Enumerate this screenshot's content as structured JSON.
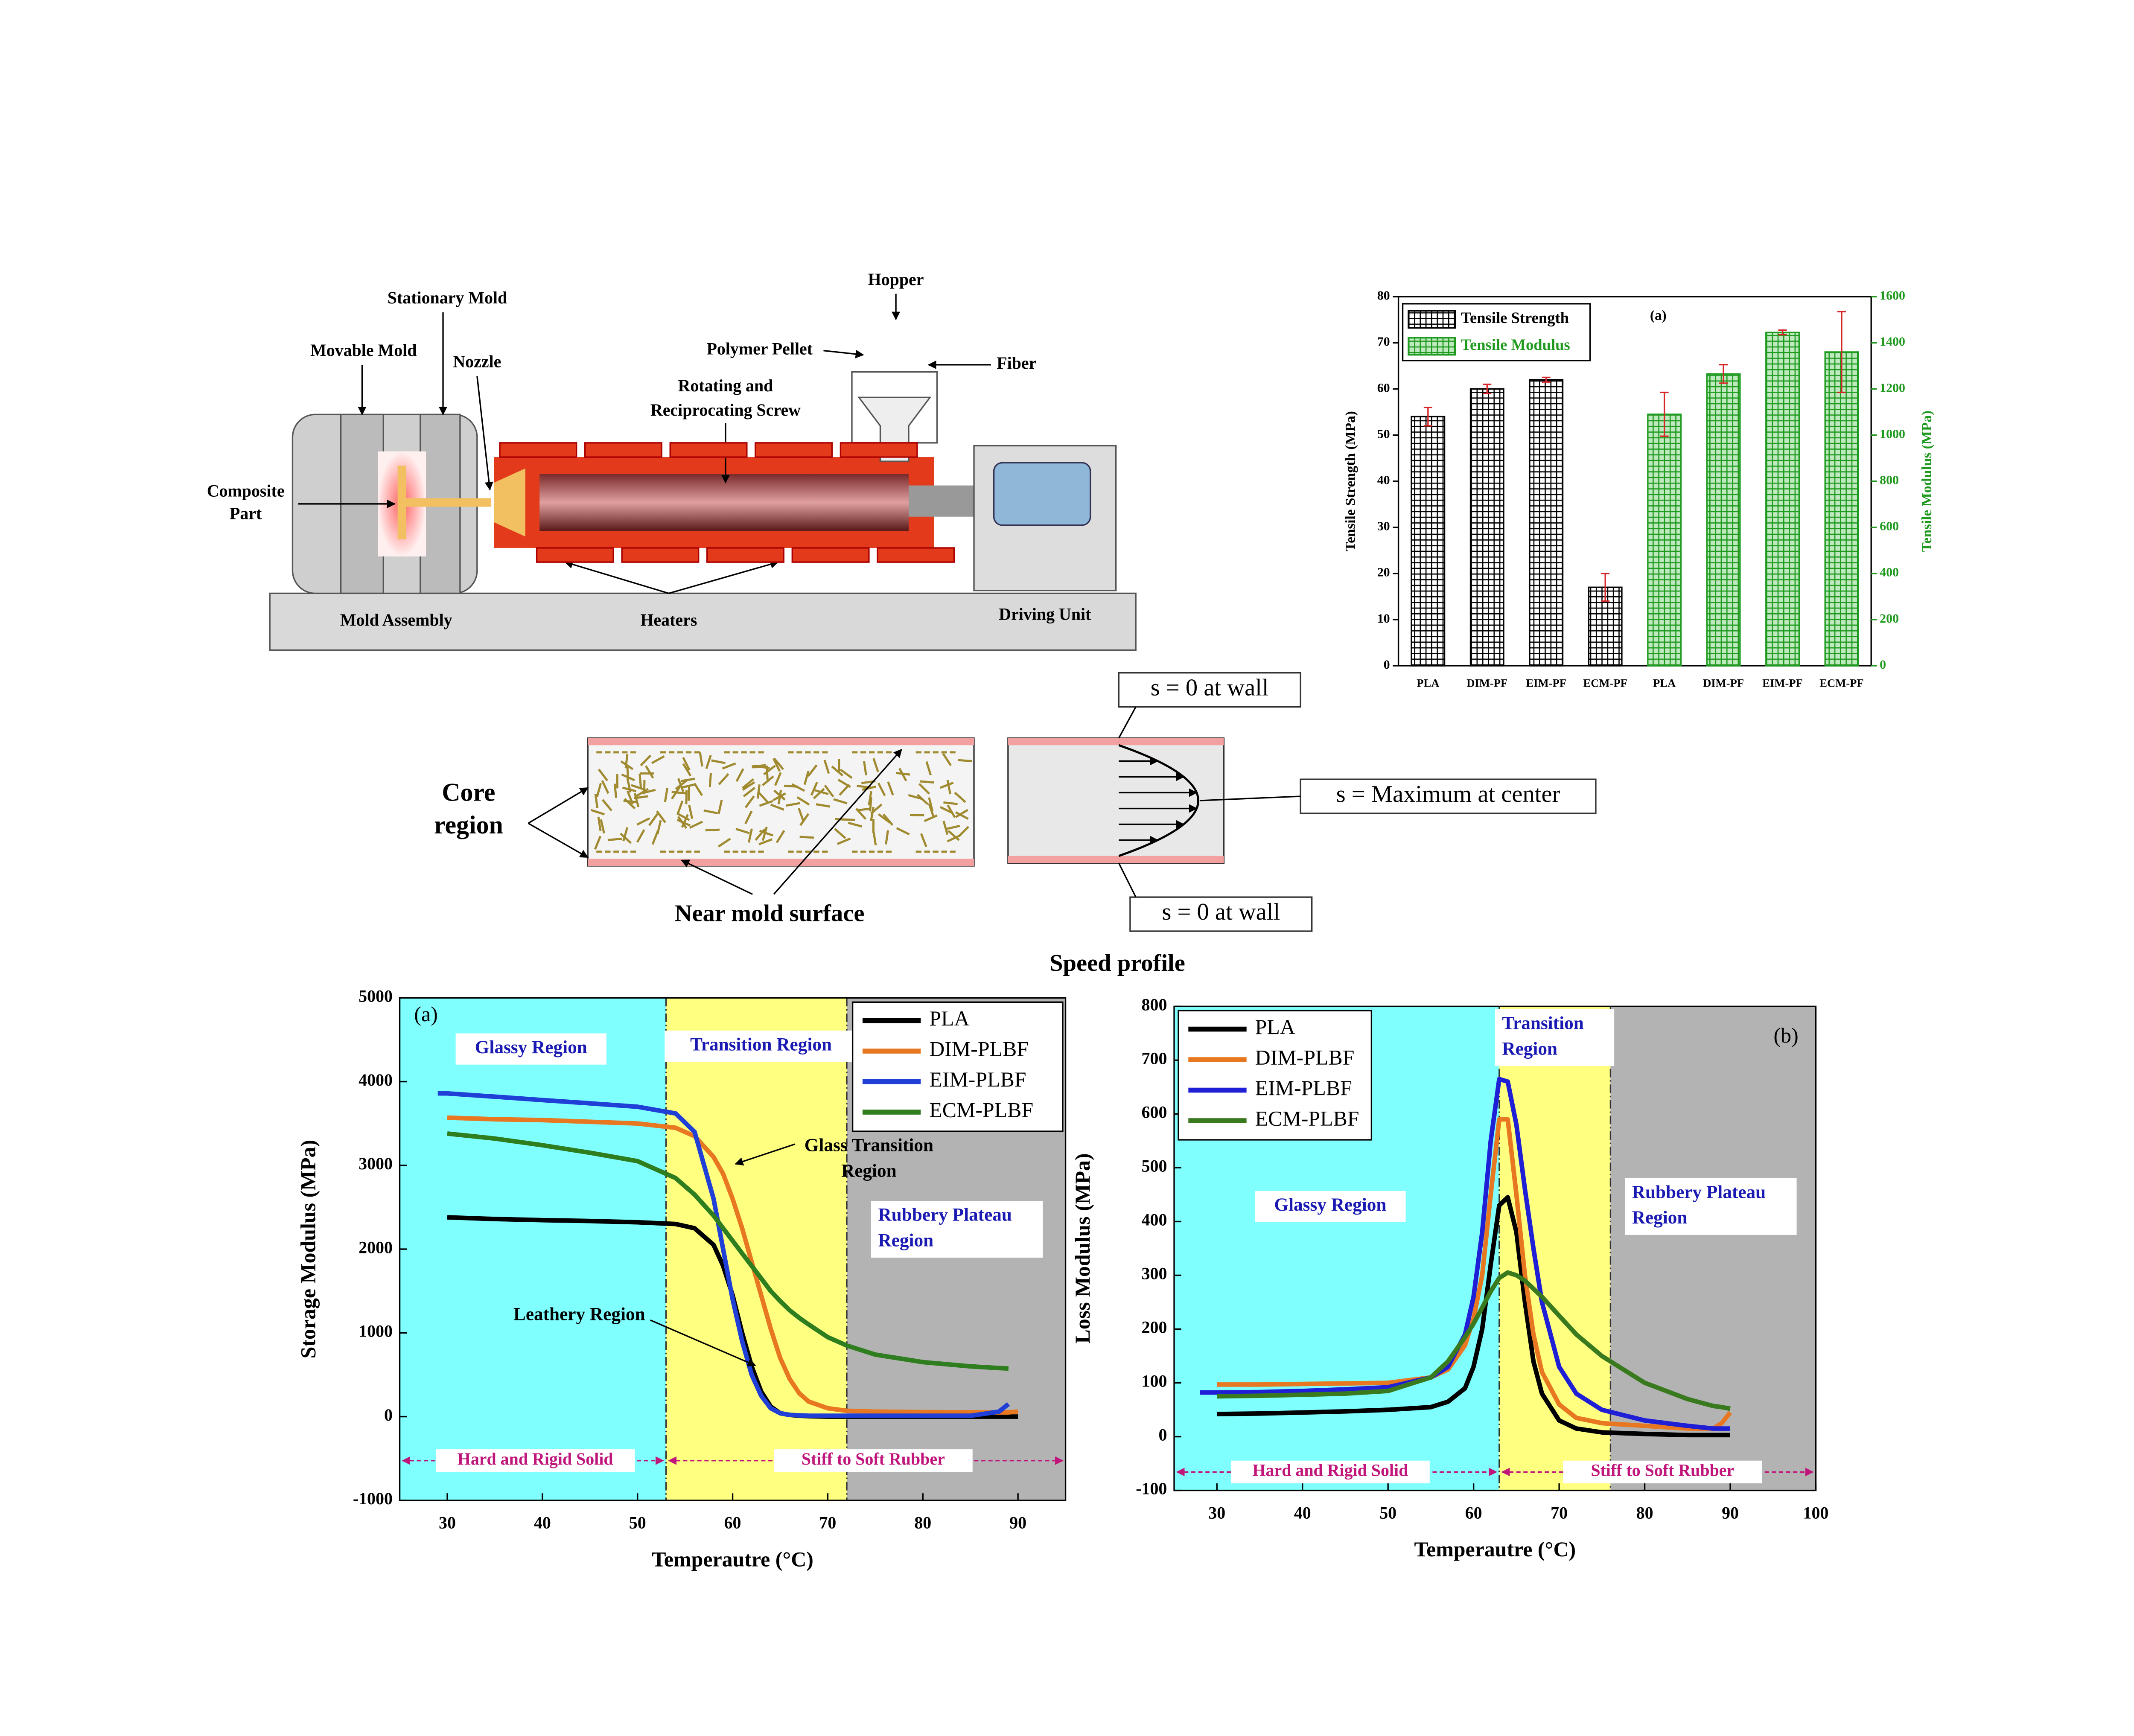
{
  "machine": {
    "hopper": "Hopper",
    "stationary_mold": "Stationary Mold",
    "movable_mold": "Movable Mold",
    "nozzle": "Nozzle",
    "polymer_pellet": "Polymer Pellet",
    "fiber": "Fiber",
    "screw": [
      "Rotating and",
      "Reciprocating Screw"
    ],
    "composite_part": [
      "Composite",
      "Part"
    ],
    "mold_assembly": "Mold Assembly",
    "heaters": "Heaters",
    "driving_unit": "Driving Unit"
  },
  "flow": {
    "core_region": [
      "Core",
      "region"
    ],
    "near_mold_surface": "Near mold surface",
    "wall_top": "s = 0 at wall",
    "center": "s = Maximum at center",
    "wall_bottom": "s = 0 at wall",
    "caption": "Speed profile"
  },
  "chart_data": [
    {
      "type": "bar",
      "panel": "(a)",
      "categories": [
        "PLA",
        "DIM-PF",
        "EIM-PF",
        "ECM-PF",
        "PLA",
        "DIM-PF",
        "EIM-PF",
        "ECM-PF"
      ],
      "series": [
        {
          "name": "Tensile Strength",
          "color": "#000000",
          "axis": "y",
          "values": [
            54,
            60,
            62,
            17,
            null,
            null,
            null,
            null
          ],
          "errors": [
            2,
            1,
            0.5,
            3,
            null,
            null,
            null,
            null
          ]
        },
        {
          "name": "Tensile Modulus",
          "color": "#1f9a1f",
          "axis": "y2",
          "values": [
            null,
            null,
            null,
            null,
            1090,
            1265,
            1445,
            1360
          ],
          "errors": [
            null,
            null,
            null,
            null,
            95,
            40,
            10,
            175
          ]
        }
      ],
      "error_color": "#d62728",
      "ylabel": "Tensile Strength (MPa)",
      "y2label": "Tensile Modulus (MPa)",
      "ylim": [
        0,
        80
      ],
      "yticks": [
        0,
        10,
        20,
        30,
        40,
        50,
        60,
        70,
        80
      ],
      "y2lim": [
        0,
        1600
      ],
      "y2ticks": [
        0,
        200,
        400,
        600,
        800,
        1000,
        1200,
        1400,
        1600
      ],
      "legend": "upper left"
    },
    {
      "type": "line",
      "panel": "(a)",
      "xlabel": "Temperautre (°C)",
      "ylabel": "Storage Modulus (MPa)",
      "xlim": [
        25,
        95
      ],
      "xticks": [
        30,
        40,
        50,
        60,
        70,
        80,
        90
      ],
      "ylim": [
        -1000,
        5000
      ],
      "yticks": [
        -1000,
        0,
        1000,
        2000,
        3000,
        4000,
        5000
      ],
      "legend": "upper right",
      "x": [
        29,
        30,
        35,
        40,
        45,
        50,
        54,
        56,
        58,
        59,
        60,
        61,
        62,
        63,
        64,
        65,
        66,
        67,
        68,
        70,
        72,
        75,
        80,
        85,
        88,
        89,
        90
      ],
      "series": [
        {
          "name": "PLA",
          "color": "#000000",
          "values": [
            null,
            2380,
            2360,
            2345,
            2335,
            2320,
            2300,
            2250,
            2050,
            1800,
            1450,
            1000,
            600,
            300,
            120,
            40,
            20,
            10,
            5,
            0,
            0,
            0,
            0,
            0,
            0,
            0,
            0
          ]
        },
        {
          "name": "DIM-PLBF",
          "color": "#e87722",
          "values": [
            null,
            3570,
            3550,
            3540,
            3520,
            3500,
            3450,
            3350,
            3100,
            2900,
            2600,
            2250,
            1850,
            1450,
            1050,
            700,
            450,
            280,
            180,
            100,
            70,
            60,
            55,
            50,
            50,
            50,
            60
          ]
        },
        {
          "name": "EIM-PLBF",
          "color": "#1f3fd6",
          "values": [
            3860,
            3860,
            3820,
            3780,
            3740,
            3700,
            3620,
            3400,
            2600,
            2000,
            1400,
            900,
            500,
            250,
            100,
            40,
            20,
            15,
            10,
            10,
            10,
            10,
            10,
            10,
            60,
            150,
            null
          ]
        },
        {
          "name": "ECM-PLBF",
          "color": "#2e7d1f",
          "values": [
            null,
            3380,
            3320,
            3240,
            3150,
            3050,
            2850,
            2650,
            2400,
            2250,
            2100,
            1950,
            1800,
            1650,
            1500,
            1380,
            1270,
            1180,
            1100,
            950,
            850,
            740,
            650,
            600,
            580,
            575,
            null
          ]
        }
      ],
      "regions": [
        {
          "label": [
            "Glassy Region"
          ],
          "from": 25,
          "to": 53,
          "color": "#80ffff"
        },
        {
          "label": [
            "Transition Region"
          ],
          "from": 53,
          "to": 72,
          "color": "#ffff80"
        },
        {
          "label": [
            "Rubbery Plateau",
            "Region"
          ],
          "from": 72,
          "to": 95,
          "color": "#b3b3b3"
        }
      ],
      "annotations": [
        [
          "Glass Transition",
          "Region"
        ],
        [
          "Leathery Region"
        ]
      ],
      "phases": [
        "Hard and Rigid Solid",
        "Stiff to Soft Rubber"
      ]
    },
    {
      "type": "line",
      "panel": "(b)",
      "xlabel": "Temperautre (°C)",
      "ylabel": "Loss Modulus (MPa)",
      "xlim": [
        25,
        100
      ],
      "xticks": [
        30,
        40,
        50,
        60,
        70,
        80,
        90,
        100
      ],
      "ylim": [
        -100,
        800
      ],
      "yticks": [
        -100,
        0,
        100,
        200,
        300,
        400,
        500,
        600,
        700,
        800
      ],
      "legend": "upper left",
      "x": [
        28,
        30,
        35,
        40,
        45,
        50,
        55,
        57,
        59,
        60,
        61,
        62,
        63,
        64,
        65,
        66,
        67,
        68,
        70,
        72,
        75,
        80,
        85,
        88,
        89,
        90
      ],
      "series": [
        {
          "name": "PLA",
          "color": "#000000",
          "values": [
            null,
            42,
            43,
            45,
            47,
            50,
            55,
            65,
            90,
            130,
            200,
            320,
            430,
            445,
            380,
            250,
            140,
            80,
            30,
            15,
            8,
            5,
            3,
            3,
            3,
            3
          ]
        },
        {
          "name": "DIM-PLBF",
          "color": "#e87722",
          "values": [
            null,
            97,
            97,
            98,
            99,
            100,
            110,
            125,
            170,
            220,
            300,
            450,
            590,
            590,
            450,
            300,
            190,
            120,
            60,
            35,
            25,
            20,
            15,
            15,
            25,
            45
          ]
        },
        {
          "name": "EIM-PLBF",
          "color": "#1f1fd6",
          "values": [
            82,
            82,
            83,
            85,
            88,
            92,
            110,
            130,
            190,
            260,
            380,
            550,
            665,
            660,
            580,
            460,
            350,
            250,
            130,
            80,
            50,
            30,
            20,
            15,
            15,
            15
          ]
        },
        {
          "name": "ECM-PLBF",
          "color": "#3a7a1f",
          "values": [
            null,
            75,
            76,
            78,
            80,
            85,
            110,
            140,
            185,
            210,
            240,
            270,
            295,
            305,
            300,
            290,
            275,
            260,
            225,
            190,
            150,
            100,
            70,
            57,
            55,
            52
          ]
        }
      ],
      "regions": [
        {
          "label": [
            "Glassy Region"
          ],
          "from": 25,
          "to": 63,
          "color": "#80ffff"
        },
        {
          "label": [
            "Transition",
            "Region"
          ],
          "from": 63,
          "to": 76,
          "color": "#ffff80"
        },
        {
          "label": [
            "Rubbery Plateau",
            "Region"
          ],
          "from": 76,
          "to": 100,
          "color": "#b3b3b3"
        }
      ],
      "annotations": [],
      "phases": [
        "Hard and Rigid Solid",
        "Stiff to Soft Rubber"
      ]
    }
  ]
}
